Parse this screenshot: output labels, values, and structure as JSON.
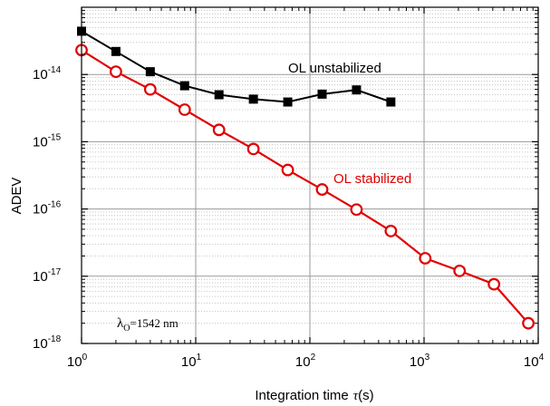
{
  "chart_data": {
    "type": "scatter",
    "title": "",
    "xlabel": "Integration time",
    "xlabel_symbol": "τ",
    "xlabel_unit": "(s)",
    "ylabel": "ADEV",
    "x_scale": "log",
    "y_scale": "log",
    "xlim": [
      1,
      10000
    ],
    "ylim": [
      1e-18,
      1e-13
    ],
    "grid": true,
    "x_ticks": [
      {
        "base": "10",
        "exp": "0",
        "value": 1
      },
      {
        "base": "10",
        "exp": "1",
        "value": 10
      },
      {
        "base": "10",
        "exp": "2",
        "value": 100
      },
      {
        "base": "10",
        "exp": "3",
        "value": 1000
      },
      {
        "base": "10",
        "exp": "4",
        "value": 10000
      }
    ],
    "y_ticks": [
      {
        "base": "10",
        "exp": "-14",
        "value": 1e-14
      },
      {
        "base": "10",
        "exp": "-15",
        "value": 1e-15
      },
      {
        "base": "10",
        "exp": "-16",
        "value": 1e-16
      },
      {
        "base": "10",
        "exp": "-17",
        "value": 1e-17
      },
      {
        "base": "10",
        "exp": "-18",
        "value": 1e-18
      }
    ],
    "series": [
      {
        "name": "OL unstabilized",
        "color": "#000000",
        "marker": "filled-square",
        "x": [
          1,
          2,
          4,
          8,
          16,
          32,
          64,
          128,
          256,
          512
        ],
        "y": [
          4.4e-14,
          2.2e-14,
          1.1e-14,
          6.8e-15,
          5e-15,
          4.3e-15,
          3.9e-15,
          5.1e-15,
          5.9e-15,
          3.9e-15
        ]
      },
      {
        "name": "OL stabilized",
        "color": "#e00000",
        "marker": "open-circle",
        "x": [
          1,
          2,
          4,
          8,
          16,
          32,
          64,
          128,
          256,
          512,
          1024,
          2048,
          4096,
          8192
        ],
        "y": [
          2.3e-14,
          1.1e-14,
          6e-15,
          3e-15,
          1.5e-15,
          7.8e-16,
          3.8e-16,
          1.95e-16,
          9.8e-17,
          4.7e-17,
          1.85e-17,
          1.2e-17,
          7.6e-18,
          2e-18
        ]
      }
    ],
    "annotations": {
      "unstabilized_label": "OL unstabilized",
      "stabilized_label": "OL stabilized",
      "lambda_symbol": "λ",
      "lambda_subscript": "O",
      "lambda_value": "=1542 nm"
    }
  }
}
